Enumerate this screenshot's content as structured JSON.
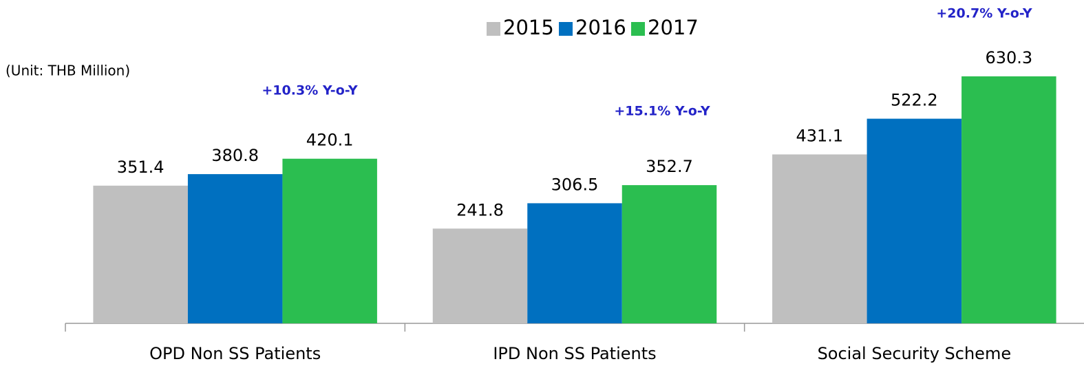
{
  "chart_data": {
    "type": "bar",
    "subtitle": "(Unit: THB Million)",
    "categories": [
      "OPD Non SS Patients",
      "IPD Non SS Patients",
      "Social Security Scheme"
    ],
    "series": [
      {
        "name": "2015",
        "color": "#bfbfbf",
        "values": [
          351.4,
          241.8,
          431.1
        ]
      },
      {
        "name": "2016",
        "color": "#0070c0",
        "values": [
          380.8,
          306.5,
          522.2
        ]
      },
      {
        "name": "2017",
        "color": "#2bbe50",
        "values": [
          420.1,
          352.7,
          630.3
        ]
      }
    ],
    "annotations": [
      "+10.3% Y-o-Y",
      "+15.1% Y-o-Y",
      "+20.7% Y-o-Y"
    ],
    "legend": "top"
  }
}
